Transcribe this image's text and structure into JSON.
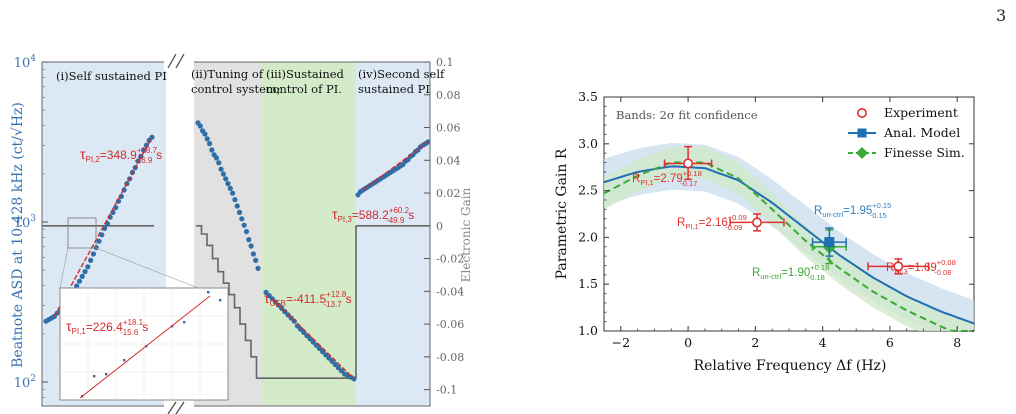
{
  "page_number": "3",
  "colors": {
    "data_blue": "#2f6fa8",
    "fit_red": "#d22b2b",
    "band_blue": "#c9dcee",
    "band_green": "#cfe8c7",
    "band_grey": "#e1e1e1",
    "model_blue": "#1f6fb5",
    "finesse_green": "#3aa935",
    "ann_red": "#e03030",
    "ann_blue": "#2f7fc1",
    "ann_green": "#3aa935",
    "gain_grey": "#666666"
  },
  "chart_data": [
    {
      "type": "scatter",
      "ylabel": "Beatnote ASD at 10.428 kHz (ct/√Hz)",
      "y2label": "Electronic Gain",
      "yscale": "log",
      "ylim_exp": [
        1.85,
        4
      ],
      "y_ticks": [
        {
          "label": "10",
          "sup": "2",
          "v": 2
        },
        {
          "label": "10",
          "sup": "3",
          "v": 3
        },
        {
          "label": "10",
          "sup": "4",
          "v": 4
        }
      ],
      "y2lim": [
        -0.11,
        0.1
      ],
      "y2_ticks": [
        0.1,
        0.08,
        0.06,
        0.04,
        0.02,
        0,
        -0.02,
        -0.04,
        -0.06,
        -0.08,
        -0.1
      ],
      "y2_tick_labels": [
        "0.1",
        "0.08",
        "0.06",
        "0.04",
        "0.02",
        "0",
        "-0.02",
        "-0.04",
        "-0.06",
        "-0.08",
        "-0.1"
      ],
      "phases": [
        {
          "lines": [
            "(i)Self sustained PI"
          ]
        },
        {
          "lines": [
            "(ii)Tuning of",
            "control system;"
          ]
        },
        {
          "lines": [
            "(iii)Sustained",
            "control of PI."
          ]
        },
        {
          "lines": [
            "(iv)Second self",
            "sustained PI"
          ]
        }
      ],
      "annotations": [
        {
          "sym": "τ",
          "sub": "PI,2",
          "text": "=348.9",
          "sup": "+18.7",
          "sub2": "-16.9",
          "unit": "s"
        },
        {
          "sym": "τ",
          "sub": "PI,3",
          "text": "=588.2",
          "sup": "+60.2",
          "sub2": "-49.9",
          "unit": "s"
        },
        {
          "sym": "τ",
          "sub": "OFB",
          "text": "=-411.5",
          "sup": "+12.8",
          "sub2": "-13.7",
          "unit": "s"
        },
        {
          "sym": "τ",
          "sub": "PI,1",
          "text": "=226.4",
          "sup": "+18.1",
          "sub2": "-15.6",
          "unit": "s"
        }
      ],
      "series": [
        {
          "segment": "i",
          "log10_asd": [
            2.38,
            2.39,
            2.4,
            2.41,
            2.43,
            2.45,
            2.47,
            2.49,
            2.52,
            2.54,
            2.57,
            2.6,
            2.63,
            2.66,
            2.69,
            2.72,
            2.76,
            2.8,
            2.84,
            2.88,
            2.92,
            2.96,
            2.99,
            3.03,
            3.06,
            3.09,
            3.13,
            3.16,
            3.2,
            3.24,
            3.27,
            3.31,
            3.34,
            3.38,
            3.41,
            3.45,
            3.48,
            3.51,
            3.53
          ]
        },
        {
          "segment": "ii",
          "log10_asd": [
            3.62,
            3.6,
            3.57,
            3.55,
            3.52,
            3.49,
            3.45,
            3.42,
            3.4,
            3.37,
            3.33,
            3.3,
            3.27,
            3.24,
            3.21,
            3.18,
            3.14,
            3.1,
            3.06,
            3.02,
            2.98,
            2.94,
            2.89,
            2.85,
            2.8,
            2.76,
            2.71
          ]
        },
        {
          "segment": "iii",
          "log10_asd": [
            2.56,
            2.54,
            2.52,
            2.5,
            2.48,
            2.46,
            2.44,
            2.42,
            2.4,
            2.38,
            2.35,
            2.33,
            2.31,
            2.29,
            2.27,
            2.25,
            2.23,
            2.21,
            2.19,
            2.17,
            2.15,
            2.13,
            2.11,
            2.09,
            2.07,
            2.05,
            2.04,
            2.03,
            2.02
          ]
        },
        {
          "segment": "iv",
          "log10_asd": [
            3.17,
            3.19,
            3.2,
            3.21,
            3.22,
            3.23,
            3.24,
            3.25,
            3.26,
            3.27,
            3.28,
            3.29,
            3.3,
            3.31,
            3.32,
            3.33,
            3.34,
            3.35,
            3.36,
            3.38,
            3.39,
            3.41,
            3.42,
            3.44,
            3.45,
            3.47,
            3.48,
            3.49,
            3.5
          ]
        }
      ],
      "gain_series": [
        {
          "segment": "i",
          "gain": 0
        },
        {
          "segment": "ii",
          "gain_steps": [
            0,
            -0.005,
            -0.012,
            -0.02,
            -0.028,
            -0.035,
            -0.042,
            -0.05,
            -0.06,
            -0.07,
            -0.08,
            -0.093
          ]
        },
        {
          "segment": "iii",
          "gain": -0.093
        },
        {
          "segment": "iv",
          "gain": 0
        }
      ]
    },
    {
      "type": "scatter",
      "xlabel": "Relative Frequency Δf (Hz)",
      "ylabel": "Parametric Gain R",
      "xlim": [
        -2.5,
        8.5
      ],
      "ylim": [
        1.0,
        3.5
      ],
      "x_ticks": [
        -2,
        0,
        2,
        4,
        6,
        8
      ],
      "x_tick_labels": [
        "−2",
        "0",
        "2",
        "4",
        "6",
        "8"
      ],
      "y_ticks": [
        1.0,
        1.5,
        2.0,
        2.5,
        3.0,
        3.5
      ],
      "y_tick_labels": [
        "1.0",
        "1.5",
        "2.0",
        "2.5",
        "3.0",
        "3.5"
      ],
      "bands_note": "Bands: 2σ fit confidence",
      "legend": [
        "Experiment",
        "Anal. Model",
        "Finesse Sim."
      ],
      "legend_position": "top-right",
      "experiment": {
        "x": [
          0.0,
          2.05,
          6.25
        ],
        "y": [
          2.79,
          2.16,
          1.69
        ],
        "xerr": [
          0.7,
          0.8,
          0.9
        ],
        "yerr_plus": [
          0.18,
          0.09,
          0.08
        ],
        "yerr_minus": [
          0.17,
          0.09,
          0.08
        ]
      },
      "anal_model": {
        "x": [
          -2.5,
          -1.5,
          -0.5,
          0.5,
          1.5,
          2.5,
          3.5,
          4.5,
          5.5,
          6.5,
          7.5,
          8.5
        ],
        "y": [
          2.59,
          2.7,
          2.76,
          2.74,
          2.61,
          2.37,
          2.09,
          1.81,
          1.57,
          1.37,
          1.21,
          1.08
        ],
        "marker": {
          "x": 4.2,
          "y": 1.95,
          "xerr": 0.5,
          "yerr": 0.15
        }
      },
      "finesse_sim": {
        "x": [
          -2.5,
          -1.5,
          -0.5,
          0.5,
          1.5,
          2.5,
          3.5,
          4.5,
          5.5,
          6.5,
          7.5,
          8.5
        ],
        "y": [
          2.47,
          2.66,
          2.8,
          2.8,
          2.63,
          2.3,
          1.96,
          1.67,
          1.42,
          1.22,
          1.05,
          0.9
        ],
        "marker": {
          "x": 4.2,
          "y": 1.9,
          "xerr": 0.5,
          "yerr": 0.18
        }
      },
      "band_halfwidth_model": 0.25,
      "band_halfwidth_finesse": 0.17,
      "annotations": [
        {
          "sym": "R",
          "sub": "PI,1",
          "text": "=2.79",
          "sup": "+0.18",
          "sub2": "-0.17"
        },
        {
          "sym": "R",
          "sub": "PI,1",
          "text": "=2.16",
          "sup": "+0.09",
          "sub2": "-0.09"
        },
        {
          "sym": "R",
          "sub": "un-ctrl",
          "text": "=1.95",
          "sup": "+0.15",
          "sub2": "-0.15"
        },
        {
          "sym": "R",
          "sub": "PI,3",
          "text": "=1.69",
          "sup": "+0.08",
          "sub2": "-0.08"
        },
        {
          "sym": "R",
          "sub": "un-ctrl",
          "text": "=1.90",
          "sup": "+0.18",
          "sub2": "-0.18"
        }
      ]
    }
  ]
}
